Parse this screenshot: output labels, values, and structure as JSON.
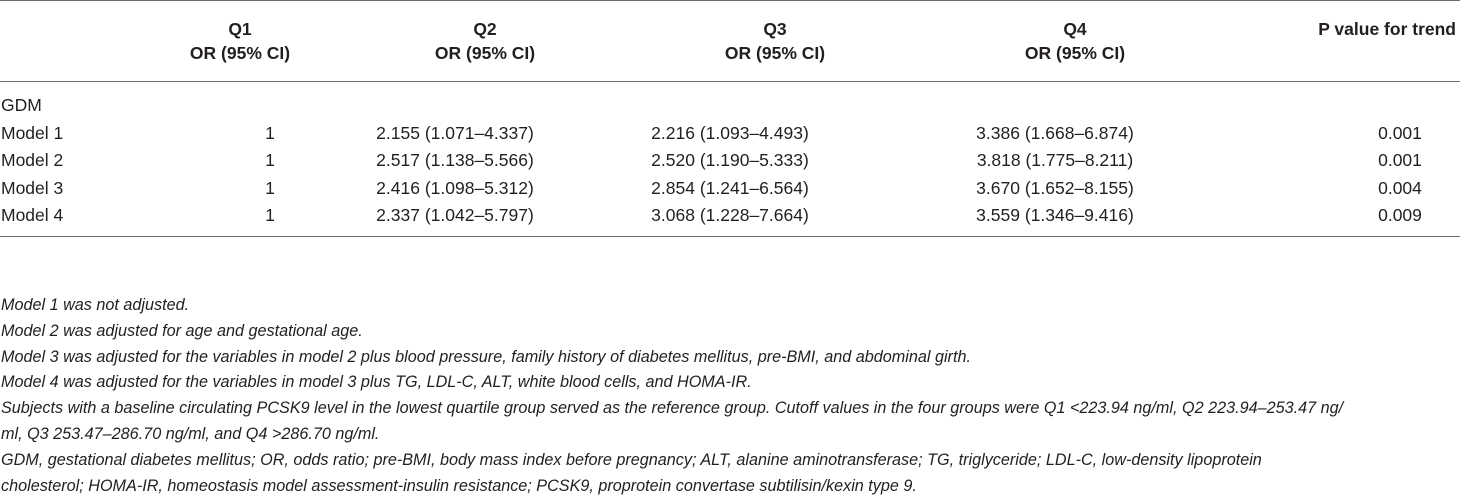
{
  "table": {
    "headers": {
      "label": "",
      "q1": {
        "line1": "Q1",
        "line2": "OR (95% CI)"
      },
      "q2": {
        "line1": "Q2",
        "line2": "OR (95% CI)"
      },
      "q3": {
        "line1": "Q3",
        "line2": "OR (95% CI)"
      },
      "q4": {
        "line1": "Q4",
        "line2": "OR (95% CI)"
      },
      "trend": "P value for trend"
    },
    "group_label": "GDM",
    "rows": [
      {
        "model": "Model 1",
        "q1": "1",
        "q2": "2.155 (1.071–4.337)",
        "q3": "2.216 (1.093–4.493)",
        "q4": "3.386 (1.668–6.874)",
        "p": "0.001"
      },
      {
        "model": "Model 2",
        "q1": "1",
        "q2": "2.517 (1.138–5.566)",
        "q3": "2.520 (1.190–5.333)",
        "q4": "3.818 (1.775–8.211)",
        "p": "0.001"
      },
      {
        "model": "Model 3",
        "q1": "1",
        "q2": "2.416 (1.098–5.312)",
        "q3": "2.854 (1.241–6.564)",
        "q4": "3.670 (1.652–8.155)",
        "p": "0.004"
      },
      {
        "model": "Model 4",
        "q1": "1",
        "q2": "2.337 (1.042–5.797)",
        "q3": "3.068 (1.228–7.664)",
        "q4": "3.559 (1.346–9.416)",
        "p": "0.009"
      }
    ]
  },
  "notes": [
    "Model 1 was not adjusted.",
    "Model 2 was adjusted for age and gestational age.",
    "Model 3 was adjusted for the variables in model 2 plus blood pressure, family history of diabetes mellitus, pre-BMI, and abdominal girth.",
    "Model 4 was adjusted for the variables in model 3 plus TG, LDL-C, ALT, white blood cells, and HOMA-IR.",
    "Subjects with a baseline circulating PCSK9 level in the lowest quartile group served as the reference group. Cutoff values in the four groups were Q1 <223.94 ng/ml, Q2 223.94–253.47 ng/",
    "ml, Q3 253.47–286.70 ng/ml, and Q4 >286.70 ng/ml.",
    "GDM, gestational diabetes mellitus; OR, odds ratio; pre-BMI, body mass index before pregnancy; ALT, alanine aminotransferase; TG, triglyceride; LDL-C, low-density lipoprotein",
    "cholesterol; HOMA-IR, homeostasis model assessment-insulin resistance; PCSK9, proprotein convertase subtilisin/kexin type 9."
  ]
}
